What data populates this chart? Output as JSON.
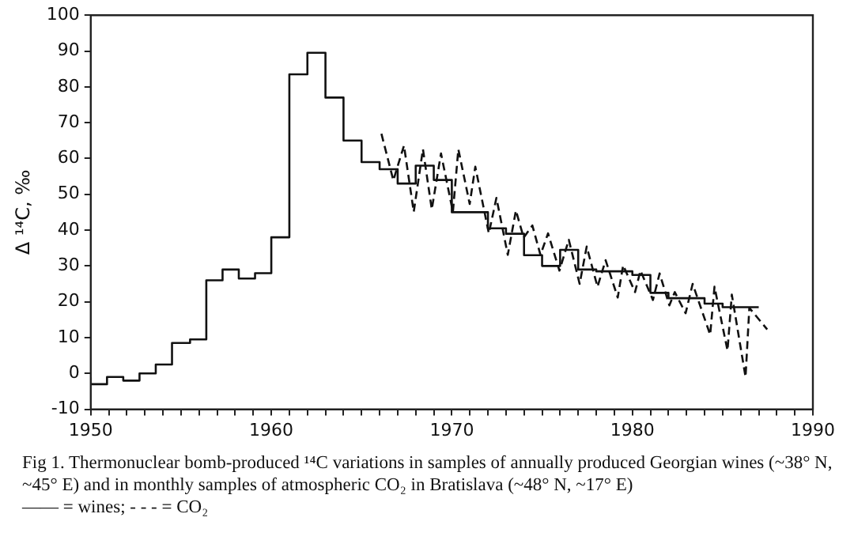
{
  "chart_data": {
    "type": "line",
    "ylabel": "Δ ¹⁴C, ‰",
    "annotations": [
      "Fig 1. Thermonuclear bomb-produced ¹⁴C variations in samples of annually produced Georgian wines (~38° N, ~45° E) and in monthly samples of atmospheric CO₂ in Bratislava (~48° N, ~17° E)",
      "—— = wines; - - - = CO₂"
    ],
    "xlim": [
      1950,
      1990
    ],
    "xticks": [
      1950,
      {
        "value": 1951,
        "label": null
      },
      {
        "value": 1952,
        "label": null
      },
      {
        "value": 1953,
        "label": null
      },
      {
        "value": 1954,
        "label": null
      },
      {
        "value": 1955,
        "label": null
      },
      {
        "value": 1956,
        "label": null
      },
      {
        "value": 1957,
        "label": null
      },
      {
        "value": 1958,
        "label": null
      },
      {
        "value": 1959,
        "label": null
      },
      1960,
      {
        "value": 1961,
        "label": null
      },
      {
        "value": 1962,
        "label": null
      },
      {
        "value": 1963,
        "label": null
      },
      {
        "value": 1964,
        "label": null
      },
      {
        "value": 1965,
        "label": null
      },
      {
        "value": 1966,
        "label": null
      },
      {
        "value": 1967,
        "label": null
      },
      {
        "value": 1968,
        "label": null
      },
      {
        "value": 1969,
        "label": null
      },
      1970,
      {
        "value": 1971,
        "label": null
      },
      {
        "value": 1972,
        "label": null
      },
      {
        "value": 1973,
        "label": null
      },
      {
        "value": 1974,
        "label": null
      },
      {
        "value": 1975,
        "label": null
      },
      {
        "value": 1976,
        "label": null
      },
      {
        "value": 1977,
        "label": null
      },
      {
        "value": 1978,
        "label": null
      },
      {
        "value": 1979,
        "label": null
      },
      1980,
      {
        "value": 1981,
        "label": null
      },
      {
        "value": 1982,
        "label": null
      },
      {
        "value": 1983,
        "label": null
      },
      {
        "value": 1984,
        "label": null
      },
      {
        "value": 1985,
        "label": null
      },
      {
        "value": 1986,
        "label": null
      },
      {
        "value": 1987,
        "label": null
      },
      {
        "value": 1988,
        "label": null
      },
      {
        "value": 1989,
        "label": null
      },
      1990
    ],
    "ylim": [
      -10,
      100
    ],
    "yticks": [
      -10,
      0,
      10,
      20,
      30,
      40,
      50,
      60,
      70,
      80,
      90,
      100
    ],
    "grid": false,
    "marker": "none",
    "series": [
      {
        "type": "step",
        "color": "#111111",
        "line_style": "solid",
        "x": [
          1950,
          1950.9,
          1951.8,
          1952.7,
          1953.6,
          1954.5,
          1955.5,
          1956.4,
          1957.3,
          1958.2,
          1959.1,
          1960,
          1961,
          1962,
          1963,
          1964,
          1965,
          1966,
          1967,
          1968,
          1969,
          1970,
          1972,
          1973,
          1974,
          1975,
          1976,
          1977,
          1978,
          1980,
          1981,
          1982,
          1984,
          1985,
          1986,
          1987
        ],
        "values": [
          -1,
          -3,
          -1,
          -2,
          0,
          2.5,
          8.5,
          9.5,
          26,
          29,
          26.5,
          28,
          38,
          83.5,
          89.5,
          77,
          65,
          59,
          57,
          53,
          58,
          54,
          45,
          40.5,
          39,
          33,
          30,
          34.5,
          29,
          28.5,
          27.5,
          22.5,
          21,
          19.5,
          18.5,
          18.5
        ]
      },
      {
        "type": "line",
        "color": "#111111",
        "line_style": "dashed",
        "x": [
          1966.1,
          1966.76,
          1967.35,
          1967.89,
          1968.4,
          1968.89,
          1969.4,
          1970.06,
          1970.36,
          1970.99,
          1971.3,
          1972.05,
          1972.47,
          1973.1,
          1973.55,
          1973.98,
          1974.46,
          1974.91,
          1975.33,
          1975.96,
          1976.48,
          1977.08,
          1977.47,
          1978.07,
          1978.52,
          1979.19,
          1979.49,
          1980.15,
          1980.45,
          1981.14,
          1981.51,
          1982.05,
          1982.35,
          1982.95,
          1983.34,
          1984.31,
          1984.55,
          1985.27,
          1985.51,
          1986.27,
          1986.48,
          1987.47
        ],
        "values": [
          66.9,
          53.9,
          63.6,
          45.1,
          62.6,
          45.8,
          61.4,
          45.1,
          62.6,
          47.3,
          57.7,
          39.1,
          49,
          33.1,
          45.5,
          37.9,
          41.3,
          33.1,
          39.1,
          28.7,
          37.3,
          25,
          35.4,
          24.2,
          31.6,
          21.2,
          30.2,
          22.7,
          28.7,
          20.5,
          27.9,
          19,
          22.7,
          16.8,
          25,
          10.8,
          24.2,
          6.4,
          22,
          -1,
          18.3,
          12.3
        ]
      }
    ]
  }
}
